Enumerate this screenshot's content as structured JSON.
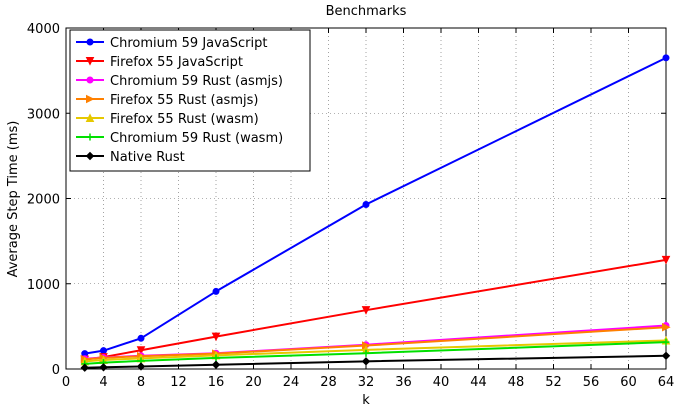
{
  "chart_data": {
    "type": "line",
    "title": "Benchmarks",
    "xlabel": "k",
    "ylabel": "Average Step Time (ms)",
    "xlim": [
      0,
      64
    ],
    "ylim": [
      0,
      4000
    ],
    "xticks": [
      0,
      4,
      8,
      12,
      16,
      20,
      24,
      28,
      32,
      36,
      40,
      44,
      48,
      52,
      56,
      60,
      64
    ],
    "yticks": [
      0,
      1000,
      2000,
      3000,
      4000
    ],
    "grid": true,
    "legend_position": "top-left",
    "series": [
      {
        "name": "Chromium 59 JavaScript",
        "color": "#0000ff",
        "marker": "circle",
        "x": [
          2,
          4,
          8,
          16,
          32,
          64
        ],
        "y": [
          180,
          215,
          360,
          910,
          1930,
          3650
        ]
      },
      {
        "name": "Firefox 55 JavaScript",
        "color": "#ff0000",
        "marker": "triangle-down",
        "x": [
          2,
          4,
          8,
          16,
          32,
          64
        ],
        "y": [
          110,
          140,
          220,
          380,
          690,
          1280
        ]
      },
      {
        "name": "Chromium 59 Rust (asmjs)",
        "color": "#ff00ff",
        "marker": "circle",
        "x": [
          2,
          4,
          8,
          16,
          32,
          64
        ],
        "y": [
          120,
          135,
          155,
          185,
          285,
          510
        ]
      },
      {
        "name": "Firefox 55 Rust (asmjs)",
        "color": "#ff8000",
        "marker": "triangle-right",
        "x": [
          2,
          4,
          8,
          16,
          32,
          64
        ],
        "y": [
          115,
          130,
          150,
          180,
          275,
          490
        ]
      },
      {
        "name": "Firefox 55 Rust (wasm)",
        "color": "#e6c800",
        "marker": "triangle-up",
        "x": [
          2,
          4,
          8,
          16,
          32,
          64
        ],
        "y": [
          90,
          105,
          125,
          160,
          225,
          335
        ]
      },
      {
        "name": "Chromium 59 Rust (wasm)",
        "color": "#00e000",
        "marker": "plus",
        "x": [
          2,
          4,
          8,
          16,
          32,
          64
        ],
        "y": [
          60,
          75,
          95,
          130,
          185,
          315
        ]
      },
      {
        "name": "Native Rust",
        "color": "#000000",
        "marker": "diamond",
        "x": [
          2,
          4,
          8,
          16,
          32,
          64
        ],
        "y": [
          15,
          20,
          30,
          50,
          90,
          155
        ]
      }
    ]
  }
}
